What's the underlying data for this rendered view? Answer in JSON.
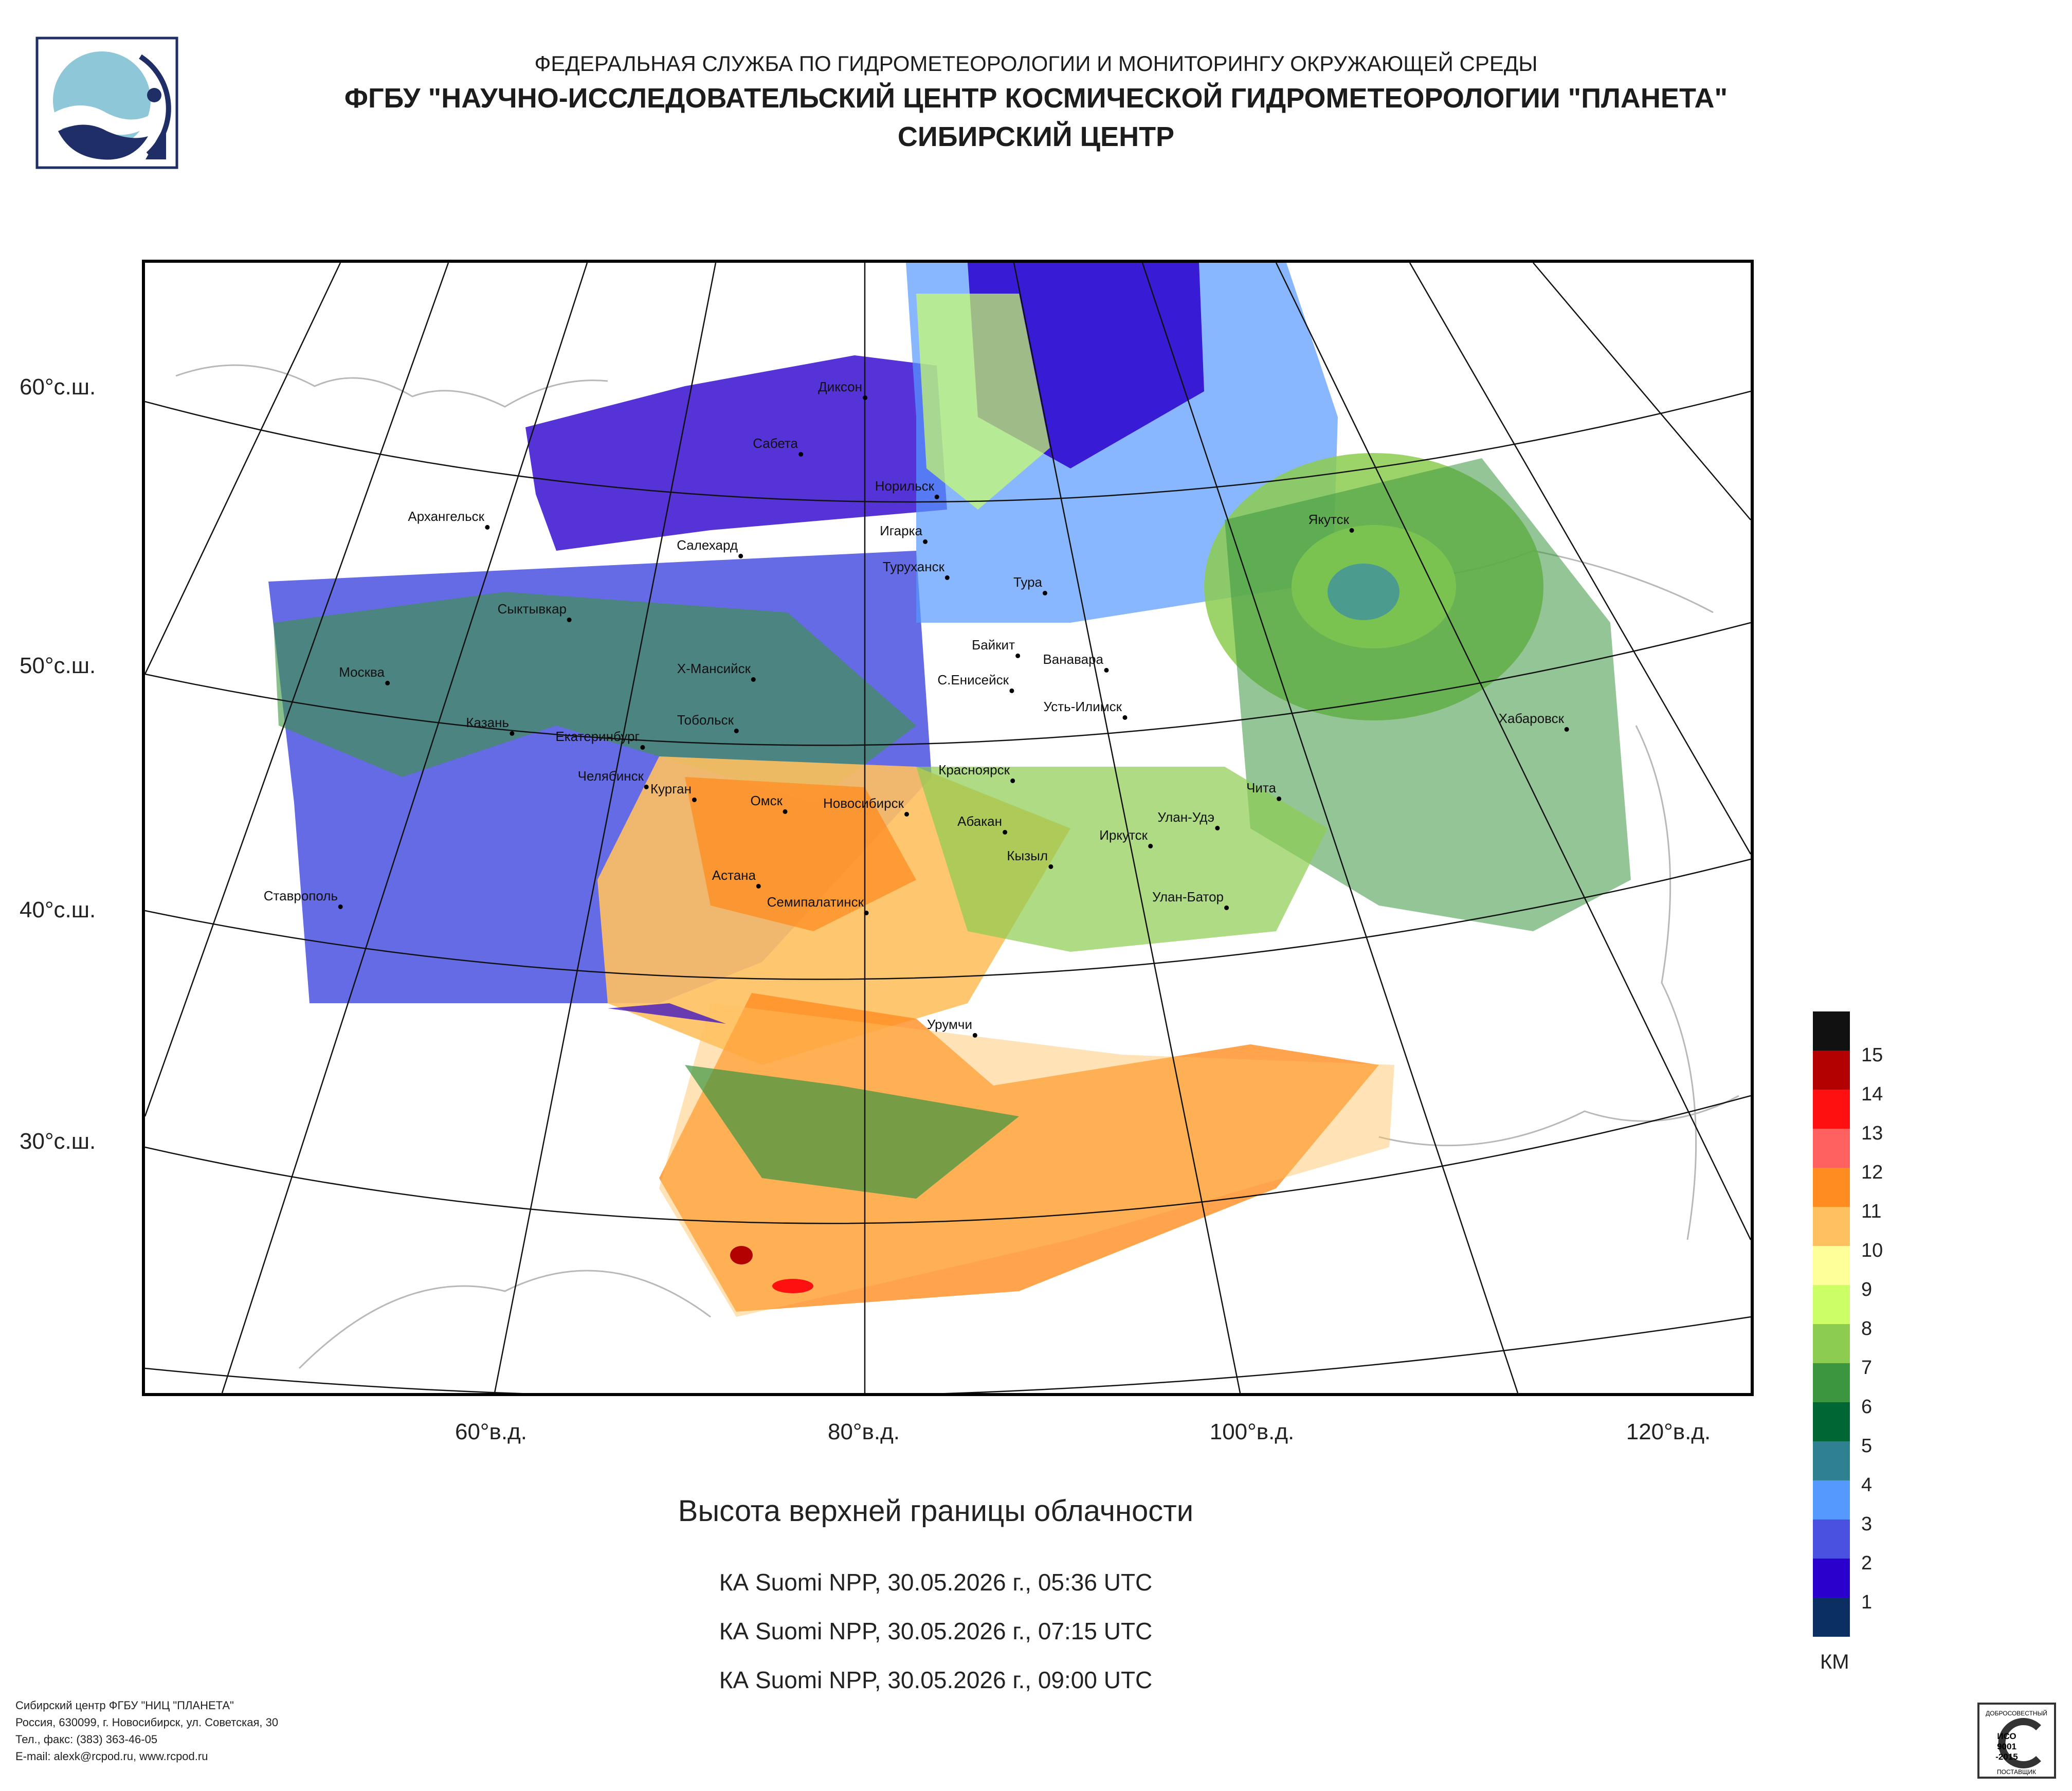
{
  "header": {
    "org_line1": "ФЕДЕРАЛЬНАЯ СЛУЖБА ПО ГИДРОМЕТЕОРОЛОГИИ И МОНИТОРИНГУ ОКРУЖАЮЩЕЙ СРЕДЫ",
    "org_line2": "ФГБУ \"НАУЧНО-ИССЛЕДОВАТЕЛЬСКИЙ ЦЕНТР КОСМИЧЕСКОЙ ГИДРОМЕТЕОРОЛОГИИ \"ПЛАНЕТА\"",
    "org_line3": "СИБИРСКИЙ ЦЕНТР"
  },
  "map": {
    "lat_labels": [
      "60°с.ш.",
      "50°с.ш.",
      "40°с.ш.",
      "30°с.ш."
    ],
    "lon_labels": [
      "60°в.д.",
      "80°в.д.",
      "100°в.д.",
      "120°в.д."
    ],
    "cities": [
      "Архангельск",
      "Диксон",
      "Сабета",
      "Норильск",
      "Салехард",
      "Игарка",
      "Туруханск",
      "Тура",
      "Якутск",
      "Сыктывкар",
      "Байкит",
      "Ванавара",
      "Москва",
      "Х-Мансийск",
      "С.Енисейск",
      "Усть-Илимск",
      "Хабаровск",
      "Казань",
      "Екатеринбург",
      "Тобольск",
      "Красноярск",
      "Чита",
      "Челябинск",
      "Курган",
      "Омск",
      "Новосибирск",
      "Абакан",
      "Улан-Удэ",
      "Иркутск",
      "Кызыл",
      "Астана",
      "Ставрополь",
      "Семипалатинск",
      "Улан-Батор",
      "Урумчи"
    ]
  },
  "chart_title": "Высота верхней границы облачности",
  "passes": [
    "КА Suomi NPP, 30.05.2026 г., 05:36 UTC",
    "КА Suomi NPP, 30.05.2026 г., 07:15 UTC",
    "КА Suomi NPP, 30.05.2026 г., 09:00 UTC"
  ],
  "legend": {
    "units": "КМ",
    "classes": [
      {
        "label": "15",
        "color": "#111111"
      },
      {
        "label": "14",
        "color": "#b30000"
      },
      {
        "label": "13",
        "color": "#ff1010"
      },
      {
        "label": "12",
        "color": "#ff6060"
      },
      {
        "label": "11",
        "color": "#ff8c20"
      },
      {
        "label": "10",
        "color": "#ffc060"
      },
      {
        "label": "9",
        "color": "#ffff99"
      },
      {
        "label": "8",
        "color": "#ccff66"
      },
      {
        "label": "7",
        "color": "#8ccc50"
      },
      {
        "label": "6",
        "color": "#3c9640"
      },
      {
        "label": "5",
        "color": "#006633"
      },
      {
        "label": "4",
        "color": "#2f8090"
      },
      {
        "label": "3",
        "color": "#5599ff"
      },
      {
        "label": "2",
        "color": "#4a50e0"
      },
      {
        "label": "1",
        "color": "#2a00cc"
      },
      {
        "label": "",
        "color": "#0b2e63"
      }
    ]
  },
  "footer": {
    "line1": "Сибирский центр ФГБУ \"НИЦ \"ПЛАНЕТА\"",
    "line2": "Россия, 630099, г. Новосибирск, ул. Советская, 30",
    "line3": "Тел., факс: (383) 363-46-05",
    "line4": "E-mail: alexk@rcpod.ru, www.rcpod.ru"
  },
  "certificate": {
    "top": "ДОБРОСОВЕСТНЫЙ",
    "mid1": "ИСО",
    "mid2": "9001",
    "mid3": "-2015",
    "bottom": "ПОСТАВЩИК"
  },
  "logo_icon": "planeta-logo-icon"
}
